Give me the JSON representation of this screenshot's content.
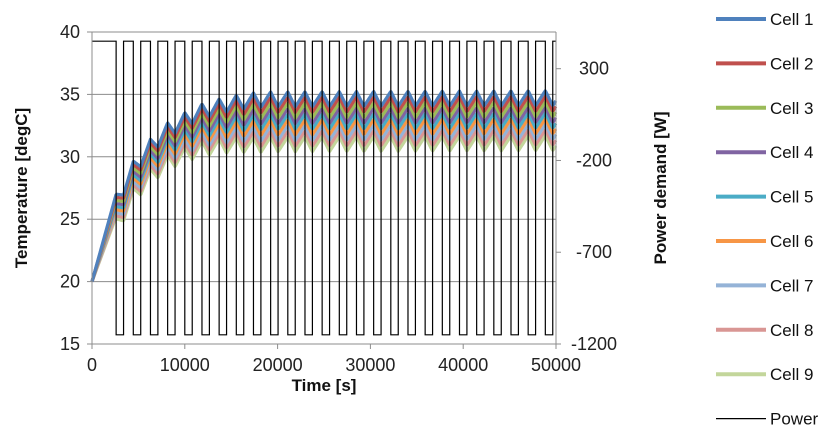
{
  "chart_data": {
    "type": "line",
    "xlabel": "Time [s]",
    "ylabel": "Temperature [degC]",
    "y2label": "Power demand [W]",
    "xlim": [
      0,
      50000
    ],
    "ylim": [
      15,
      40
    ],
    "y2lim": [
      -1200,
      500
    ],
    "x_ticks": [
      "0",
      "10000",
      "20000",
      "30000",
      "40000",
      "50000"
    ],
    "x_tick_values": [
      0,
      10000,
      20000,
      30000,
      40000,
      50000
    ],
    "y_ticks": [
      "15",
      "20",
      "25",
      "30",
      "35",
      "40"
    ],
    "y_tick_values": [
      15,
      20,
      25,
      30,
      35,
      40
    ],
    "y2_ticks": [
      "300",
      "-200",
      "-700",
      "-1200"
    ],
    "y2_tick_values": [
      300,
      -200,
      -700,
      -1200
    ],
    "grid": "horizontal",
    "legend_position": "right",
    "series": [
      {
        "name": "Cell 1",
        "color": "#4f81bd",
        "axis": "left",
        "offset": 0.0
      },
      {
        "name": "Cell 2",
        "color": "#c0504d",
        "axis": "left",
        "offset": -0.45
      },
      {
        "name": "Cell 3",
        "color": "#9bbb59",
        "axis": "left",
        "offset": -0.9
      },
      {
        "name": "Cell 4",
        "color": "#8064a2",
        "axis": "left",
        "offset": -1.35
      },
      {
        "name": "Cell 5",
        "color": "#4bacc6",
        "axis": "left",
        "offset": -1.8
      },
      {
        "name": "Cell 6",
        "color": "#f79646",
        "axis": "left",
        "offset": -2.25
      },
      {
        "name": "Cell 7",
        "color": "#95b3d7",
        "axis": "left",
        "offset": -2.7
      },
      {
        "name": "Cell 8",
        "color": "#d99694",
        "axis": "left",
        "offset": -3.15
      },
      {
        "name": "Cell 9",
        "color": "#c3d69b",
        "axis": "left",
        "offset": -3.6
      },
      {
        "name": "Power",
        "color": "#000000",
        "axis": "right"
      }
    ],
    "temperature_profile": {
      "start": 20.0,
      "end_of_ramp_time": 2600,
      "end_of_ramp_value": 27.0,
      "cycle_peaks": [
        [
          2600,
          27.0
        ],
        [
          4500,
          29.7
        ],
        [
          6300,
          31.4
        ],
        [
          8100,
          32.7
        ],
        [
          9900,
          33.5
        ],
        [
          11700,
          34.2
        ],
        [
          13500,
          34.6
        ],
        [
          15300,
          34.9
        ],
        [
          17100,
          35.1
        ],
        [
          19000,
          35.2
        ],
        [
          50000,
          35.3
        ]
      ],
      "cycle_amplitude": 1.2
    },
    "power_profile": {
      "high": 450,
      "low": -1150,
      "first_drop": 2600,
      "period": 1850,
      "low_duration": 800,
      "end": 50000
    }
  },
  "legend": {
    "items": [
      "Cell 1",
      "Cell 2",
      "Cell 3",
      "Cell 4",
      "Cell 5",
      "Cell 6",
      "Cell 7",
      "Cell 8",
      "Cell 9",
      "Power"
    ]
  }
}
